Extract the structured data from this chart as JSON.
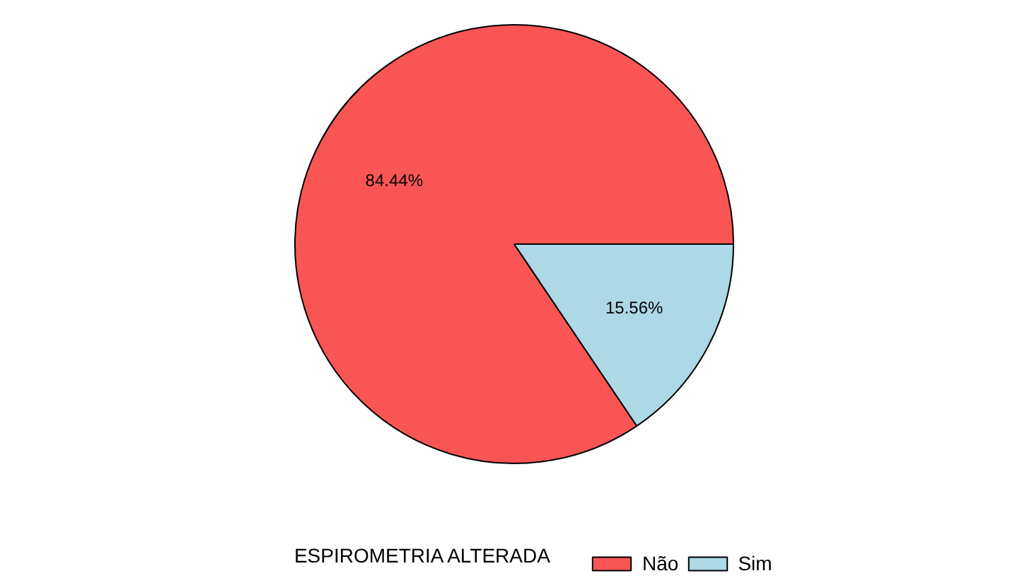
{
  "chart_data": {
    "type": "pie",
    "legend_title": "ESPIROMETRIA ALTERADA",
    "categories": [
      "Não",
      "Sim"
    ],
    "values": [
      84.44,
      15.56
    ],
    "colors": [
      "#f95555",
      "#add8e6"
    ],
    "value_labels": [
      "84.44%",
      "15.56%"
    ],
    "legend": "bottom"
  }
}
